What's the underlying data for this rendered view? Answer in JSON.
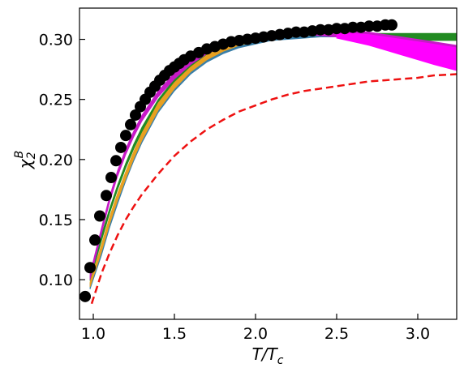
{
  "chart_data": {
    "type": "line",
    "xlabel": {
      "main": "T/T",
      "sub": "c"
    },
    "ylabel": {
      "main": "χ",
      "sup": "B",
      "sub": "2"
    },
    "xlim": [
      0.915,
      3.24
    ],
    "ylim": [
      0.067,
      0.326
    ],
    "xticks": [
      1.0,
      1.5,
      2.0,
      2.5,
      3.0
    ],
    "xtick_labels": [
      "1.0",
      "1.5",
      "2.0",
      "2.5",
      "3.0"
    ],
    "yticks": [
      0.1,
      0.15,
      0.2,
      0.25,
      0.3
    ],
    "ytick_labels": [
      "0.10",
      "0.15",
      "0.20",
      "0.25",
      "0.30"
    ],
    "grid": false,
    "colors": {
      "points": "#000000",
      "green_band": "#228B22",
      "magenta_band": "#FF00FF",
      "dark_magenta_band": "#C71AC7",
      "blue_band": "#3A7FA8",
      "orange_band": "#E8A020",
      "dashed": "#EE1111"
    },
    "series": [
      {
        "style": "points",
        "color": "#000000",
        "x": [
          0.95,
          0.98,
          1.01,
          1.04,
          1.08,
          1.11,
          1.14,
          1.17,
          1.2,
          1.23,
          1.26,
          1.29,
          1.32,
          1.35,
          1.38,
          1.41,
          1.44,
          1.47,
          1.5,
          1.53,
          1.56,
          1.6,
          1.65,
          1.7,
          1.75,
          1.8,
          1.85,
          1.9,
          1.95,
          2.0,
          2.05,
          2.1,
          2.15,
          2.2,
          2.25,
          2.3,
          2.35,
          2.4,
          2.45,
          2.5,
          2.55,
          2.6,
          2.65,
          2.7,
          2.75,
          2.8,
          2.84
        ],
        "y": [
          0.086,
          0.11,
          0.133,
          0.153,
          0.17,
          0.185,
          0.199,
          0.21,
          0.22,
          0.229,
          0.237,
          0.244,
          0.25,
          0.256,
          0.261,
          0.266,
          0.27,
          0.274,
          0.277,
          0.28,
          0.283,
          0.286,
          0.289,
          0.292,
          0.294,
          0.296,
          0.298,
          0.299,
          0.3,
          0.301,
          0.302,
          0.303,
          0.304,
          0.305,
          0.306,
          0.306,
          0.307,
          0.308,
          0.308,
          0.309,
          0.309,
          0.31,
          0.31,
          0.311,
          0.311,
          0.312,
          0.312
        ]
      },
      {
        "style": "band",
        "color": "#228B22",
        "x": [
          0.98,
          1.05,
          1.1,
          1.15,
          1.2,
          1.25,
          1.3,
          1.4,
          1.5,
          1.6,
          1.7,
          1.8,
          1.9,
          2.0,
          2.1,
          2.2,
          2.3,
          2.4,
          2.5,
          2.6,
          2.7,
          2.8,
          2.9,
          3.0,
          3.1,
          3.24
        ],
        "low": [
          0.099,
          0.132,
          0.155,
          0.175,
          0.193,
          0.209,
          0.223,
          0.246,
          0.263,
          0.276,
          0.285,
          0.291,
          0.295,
          0.298,
          0.3,
          0.301,
          0.302,
          0.302,
          0.302,
          0.302,
          0.301,
          0.3,
          0.3,
          0.299,
          0.299,
          0.299
        ],
        "high": [
          0.103,
          0.137,
          0.159,
          0.179,
          0.197,
          0.213,
          0.227,
          0.25,
          0.267,
          0.28,
          0.289,
          0.295,
          0.299,
          0.301,
          0.303,
          0.304,
          0.305,
          0.305,
          0.305,
          0.305,
          0.305,
          0.305,
          0.305,
          0.305,
          0.305,
          0.305
        ]
      },
      {
        "style": "band",
        "color": "#3A7FA8",
        "x": [
          0.98,
          1.05,
          1.1,
          1.15,
          1.2,
          1.25,
          1.3,
          1.4,
          1.5,
          1.6,
          1.7,
          1.8,
          1.9,
          2.0,
          2.1,
          2.2,
          2.3,
          2.4,
          2.5
        ],
        "low": [
          0.092,
          0.12,
          0.143,
          0.163,
          0.182,
          0.199,
          0.214,
          0.239,
          0.257,
          0.271,
          0.281,
          0.288,
          0.293,
          0.296,
          0.299,
          0.3,
          0.301,
          0.302,
          0.302
        ],
        "high": [
          0.097,
          0.127,
          0.15,
          0.17,
          0.188,
          0.205,
          0.22,
          0.245,
          0.262,
          0.275,
          0.285,
          0.292,
          0.297,
          0.3,
          0.302,
          0.303,
          0.304,
          0.305,
          0.305
        ]
      },
      {
        "style": "band",
        "color": "#E8A020",
        "x": [
          0.98,
          1.05,
          1.1,
          1.15,
          1.2,
          1.25,
          1.3,
          1.4,
          1.5,
          1.6,
          1.7,
          1.8,
          1.9,
          2.0,
          2.1,
          2.2,
          2.3,
          2.4,
          2.5
        ],
        "low": [
          0.094,
          0.123,
          0.146,
          0.166,
          0.184,
          0.201,
          0.216,
          0.241,
          0.259,
          0.273,
          0.283,
          0.29,
          0.295,
          0.298,
          0.301,
          0.302,
          0.303,
          0.304,
          0.304
        ],
        "high": [
          0.098,
          0.129,
          0.152,
          0.172,
          0.19,
          0.207,
          0.222,
          0.247,
          0.264,
          0.277,
          0.287,
          0.294,
          0.299,
          0.302,
          0.304,
          0.305,
          0.306,
          0.307,
          0.307
        ]
      },
      {
        "style": "band",
        "color": "#C71AC7",
        "x": [
          0.98,
          1.05,
          1.1,
          1.15,
          1.2,
          1.25,
          1.3,
          1.4,
          1.5,
          1.6,
          1.7,
          1.8,
          1.9,
          2.0,
          2.1,
          2.2,
          2.3,
          2.4,
          2.5,
          2.6,
          2.7,
          2.8,
          2.9,
          3.0,
          3.1,
          3.24
        ],
        "low": [
          0.1,
          0.138,
          0.164,
          0.186,
          0.204,
          0.219,
          0.232,
          0.252,
          0.267,
          0.279,
          0.288,
          0.294,
          0.298,
          0.301,
          0.303,
          0.304,
          0.304,
          0.303,
          0.302,
          0.3,
          0.298,
          0.295,
          0.292,
          0.289,
          0.286,
          0.282
        ],
        "high": [
          0.105,
          0.143,
          0.169,
          0.191,
          0.209,
          0.224,
          0.237,
          0.257,
          0.272,
          0.284,
          0.292,
          0.298,
          0.302,
          0.304,
          0.306,
          0.307,
          0.307,
          0.307,
          0.307,
          0.307,
          0.306,
          0.304,
          0.302,
          0.3,
          0.298,
          0.295
        ]
      },
      {
        "style": "band",
        "color": "#FF00FF",
        "x": [
          2.5,
          2.6,
          2.7,
          2.8,
          2.9,
          3.0,
          3.1,
          3.24
        ],
        "low": [
          0.301,
          0.298,
          0.295,
          0.291,
          0.287,
          0.283,
          0.279,
          0.274
        ],
        "high": [
          0.306,
          0.305,
          0.304,
          0.302,
          0.3,
          0.298,
          0.296,
          0.293
        ]
      },
      {
        "style": "dashed",
        "color": "#EE1111",
        "x": [
          0.99,
          1.05,
          1.1,
          1.15,
          1.2,
          1.25,
          1.3,
          1.4,
          1.5,
          1.6,
          1.7,
          1.8,
          1.9,
          2.0,
          2.1,
          2.2,
          2.3,
          2.4,
          2.5,
          2.6,
          2.7,
          2.8,
          2.9,
          3.0,
          3.1,
          3.24
        ],
        "y": [
          0.08,
          0.105,
          0.122,
          0.137,
          0.15,
          0.161,
          0.171,
          0.188,
          0.203,
          0.215,
          0.225,
          0.233,
          0.24,
          0.245,
          0.25,
          0.254,
          0.257,
          0.259,
          0.261,
          0.263,
          0.265,
          0.266,
          0.267,
          0.268,
          0.27,
          0.271
        ]
      }
    ]
  }
}
